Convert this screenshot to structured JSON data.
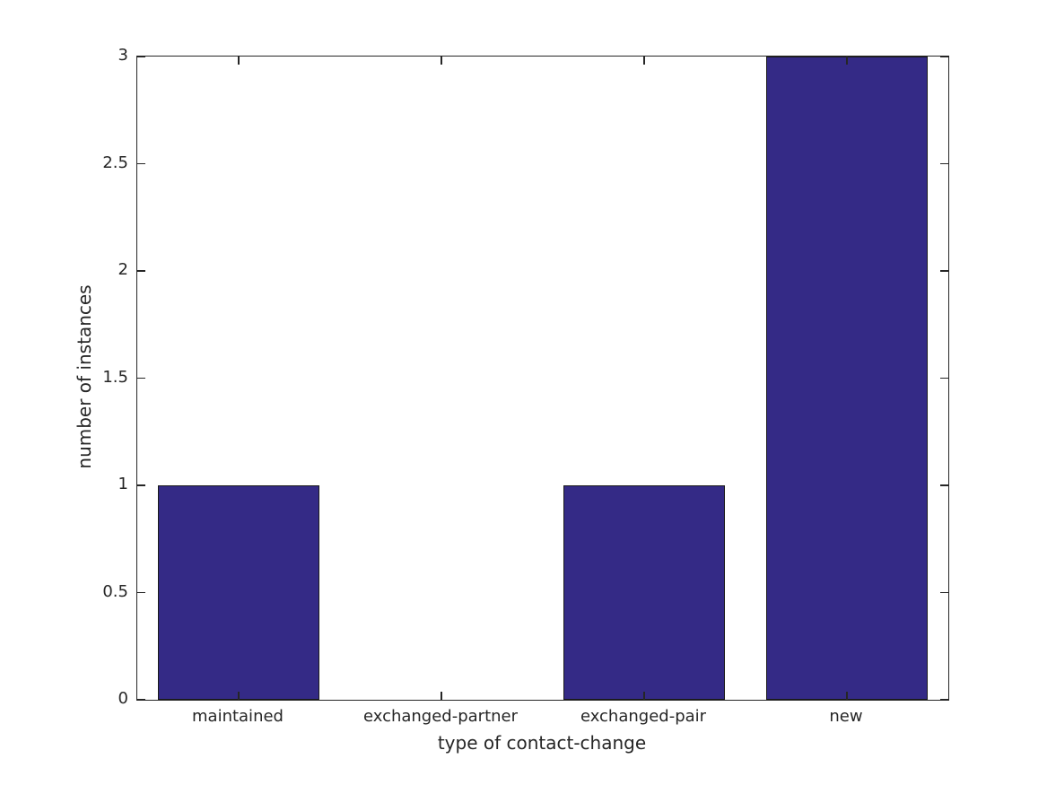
{
  "chart_data": {
    "type": "bar",
    "title": "",
    "categories": [
      "maintained",
      "exchanged-partner",
      "exchanged-pair",
      "new"
    ],
    "values": [
      1,
      0,
      1,
      3
    ],
    "xlabel": "type of contact-change",
    "ylabel": "number of instances",
    "ylim": [
      0,
      3
    ],
    "yticks": [
      0,
      0.5,
      1,
      1.5,
      2,
      2.5,
      3
    ],
    "ytick_labels": [
      "0",
      "0.5",
      "1",
      "1.5",
      "2",
      "2.5",
      "3"
    ],
    "bar_width_fraction": 0.8,
    "grid": false,
    "legend_position": "none",
    "colors": {
      "bar_fill": "#342a86",
      "bar_edge": "#1a1a1a",
      "axis": "#262626",
      "text": "#262626",
      "background": "#ffffff"
    }
  }
}
